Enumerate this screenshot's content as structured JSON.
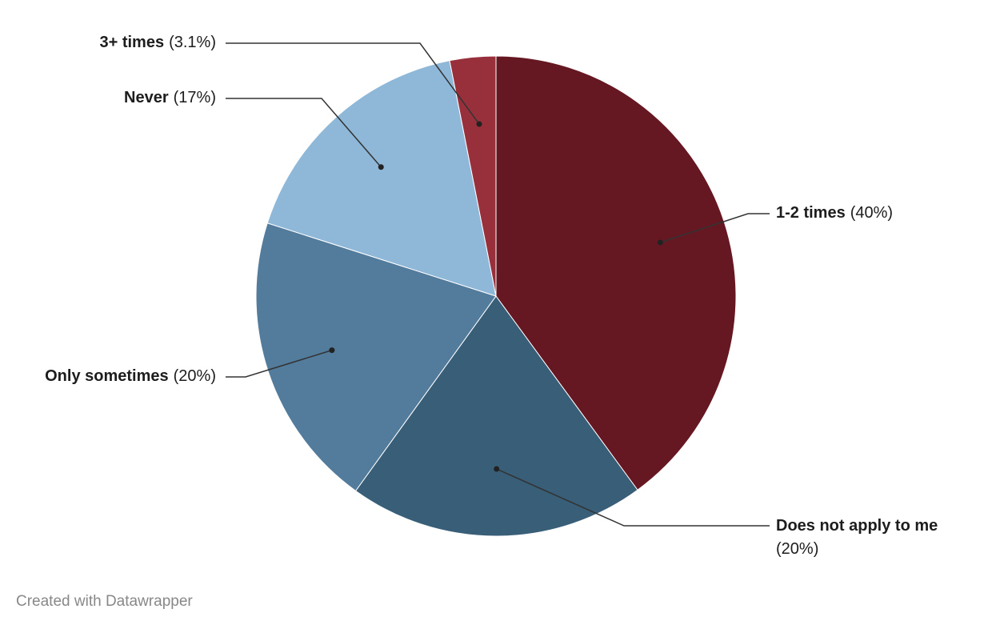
{
  "chart_data": {
    "type": "pie",
    "categories": [
      "1-2 times",
      "Does not apply to me",
      "Only sometimes",
      "Never",
      "3+ times"
    ],
    "values": [
      40,
      20,
      20,
      17,
      3.1
    ],
    "value_labels": [
      "(40%)",
      "(20%)",
      "(20%)",
      "(17%)",
      "(3.1%)"
    ],
    "colors": [
      "#651722",
      "#385e78",
      "#537b9b",
      "#8eb7d8",
      "#98303b"
    ],
    "footer": "Created with Datawrapper"
  }
}
